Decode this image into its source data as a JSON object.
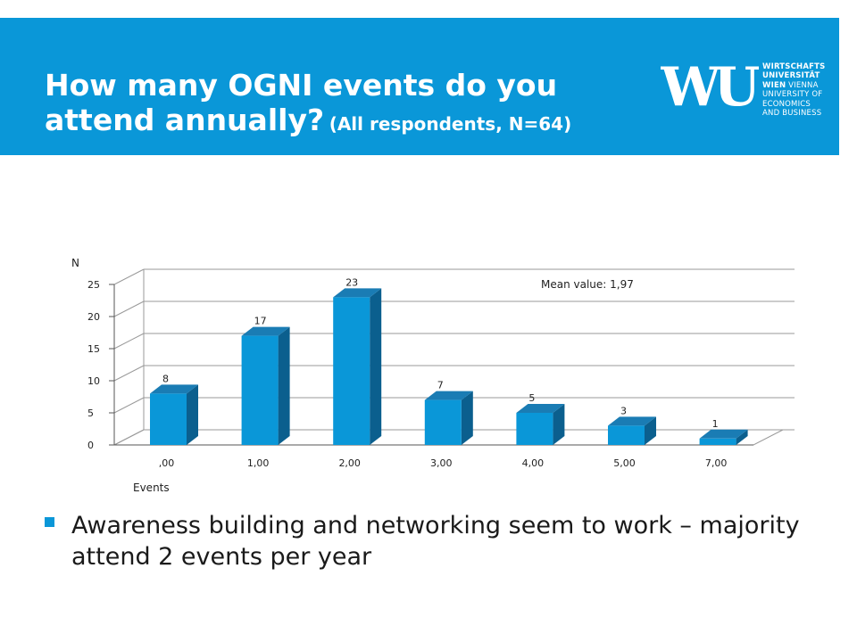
{
  "header": {
    "title_main": "How many OGNI events do you attend annually?",
    "title_sub": "(All respondents, N=64)"
  },
  "logo": {
    "mark": "WU",
    "lines": [
      "WIRTSCHAFTS",
      "UNIVERSITÄT",
      "WIEN VIENNA",
      "UNIVERSITY OF",
      "ECONOMICS",
      "AND BUSINESS"
    ]
  },
  "colors": {
    "header_bg": "#0a97d8",
    "bar_front": "#0a97d8",
    "bar_side": "#0b5f8e",
    "bar_top": "#1a7cb4"
  },
  "chart_data": {
    "type": "bar",
    "categories": [
      ",00",
      "1,00",
      "2,00",
      "3,00",
      "4,00",
      "5,00",
      "7,00"
    ],
    "values": [
      8,
      17,
      23,
      7,
      5,
      3,
      1
    ],
    "xlabel": "Events",
    "ylabel": "N",
    "ylim": [
      0,
      25
    ],
    "yticks": [
      0,
      5,
      10,
      15,
      20,
      25
    ],
    "annotation": "Mean value: 1,97",
    "grid": true,
    "style": "3d"
  },
  "bullets": [
    "Awareness building and networking seem to work – majority attend 2 events per year"
  ]
}
